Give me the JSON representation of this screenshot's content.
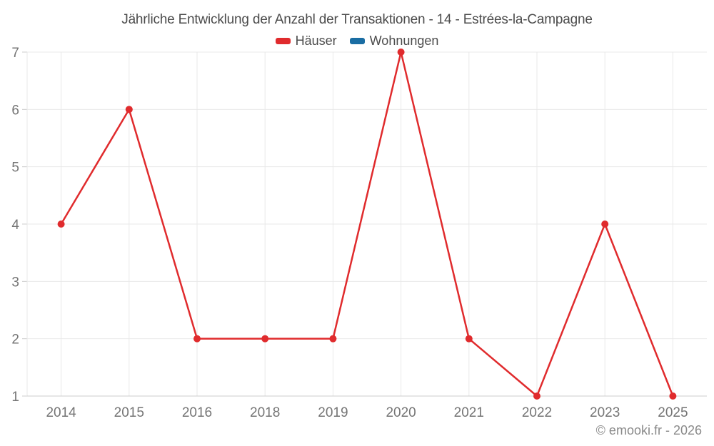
{
  "chart_data": {
    "type": "line",
    "title": "Jährliche Entwicklung der Anzahl der Transaktionen - 14 - Estrées-la-Campagne",
    "categories": [
      "2014",
      "2015",
      "2016",
      "2018",
      "2019",
      "2020",
      "2021",
      "2022",
      "2023",
      "2025"
    ],
    "series": [
      {
        "name": "Häuser",
        "color": "#e02b2d",
        "values": [
          4,
          6,
          2,
          2,
          2,
          7,
          2,
          1,
          4,
          1
        ]
      },
      {
        "name": "Wohnungen",
        "color": "#1a6da3",
        "values": []
      }
    ],
    "ylim": [
      1,
      7
    ],
    "yticks": [
      1,
      2,
      3,
      4,
      5,
      6,
      7
    ],
    "xlabel": "",
    "ylabel": "",
    "grid": true,
    "legend_position": "top"
  },
  "footer": {
    "text": "© emooki.fr - 2026"
  },
  "colors": {
    "grid": "#e9e9e9",
    "axis": "#cccccc",
    "axis_label": "#757575",
    "title_text": "#4c4c4c",
    "footer_text": "#8a8a8a",
    "haeuser": "#e02b2d",
    "wohnungen": "#1a6da3"
  }
}
